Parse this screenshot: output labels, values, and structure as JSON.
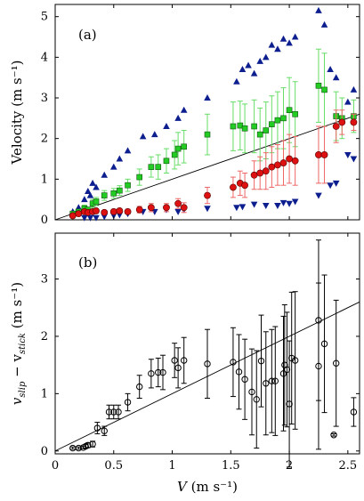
{
  "chart_data": [
    {
      "type": "scatter",
      "panel_label": "(a)",
      "ylabel": "Velocity  (m s⁻¹)",
      "xlim": [
        0,
        2.6
      ],
      "ylim": [
        0,
        5.3
      ],
      "xticks": [
        "0",
        "0.5",
        "1",
        "1.5",
        "2",
        "2.5"
      ],
      "xtick_values": [
        0,
        0.5,
        1,
        1.5,
        2,
        2.5
      ],
      "yticks": [
        "0",
        "1",
        "2",
        "3",
        "4",
        "5"
      ],
      "ytick_values": [
        0,
        1,
        2,
        3,
        4,
        5
      ],
      "reference_line": [
        [
          0,
          0
        ],
        [
          2.6,
          2.6
        ]
      ],
      "series": [
        {
          "marker": "triangle-up",
          "color": "#0d1f8f",
          "points": [
            [
              0.15,
              0.2
            ],
            [
              0.2,
              0.3
            ],
            [
              0.25,
              0.5
            ],
            [
              0.28,
              0.7
            ],
            [
              0.3,
              0.6
            ],
            [
              0.32,
              0.9
            ],
            [
              0.35,
              0.8
            ],
            [
              0.42,
              1.1
            ],
            [
              0.5,
              1.3
            ],
            [
              0.55,
              1.5
            ],
            [
              0.62,
              1.7
            ],
            [
              0.75,
              2.05
            ],
            [
              0.85,
              2.1
            ],
            [
              0.95,
              2.3
            ],
            [
              1.05,
              2.5
            ],
            [
              1.1,
              2.7
            ],
            [
              1.3,
              3.0
            ],
            [
              1.55,
              3.4
            ],
            [
              1.6,
              3.7
            ],
            [
              1.65,
              3.8
            ],
            [
              1.7,
              3.6
            ],
            [
              1.75,
              3.9
            ],
            [
              1.8,
              4.0
            ],
            [
              1.85,
              4.3
            ],
            [
              1.9,
              4.2
            ],
            [
              1.95,
              4.45
            ],
            [
              2.0,
              4.35
            ],
            [
              2.05,
              4.5
            ],
            [
              2.25,
              5.15
            ],
            [
              2.3,
              4.8
            ],
            [
              2.35,
              3.7
            ],
            [
              2.4,
              3.5
            ],
            [
              2.5,
              2.9
            ],
            [
              2.55,
              3.2
            ]
          ]
        },
        {
          "marker": "triangle-down",
          "color": "#0d1f8f",
          "points": [
            [
              0.25,
              0.05
            ],
            [
              0.3,
              0.05
            ],
            [
              0.35,
              0.05
            ],
            [
              0.42,
              0.08
            ],
            [
              0.5,
              0.1
            ],
            [
              0.55,
              0.12
            ],
            [
              0.62,
              0.15
            ],
            [
              0.75,
              0.2
            ],
            [
              0.85,
              0.2
            ],
            [
              0.95,
              0.25
            ],
            [
              1.05,
              0.2
            ],
            [
              1.1,
              0.25
            ],
            [
              1.3,
              0.28
            ],
            [
              1.55,
              0.3
            ],
            [
              1.6,
              0.32
            ],
            [
              1.7,
              0.38
            ],
            [
              1.8,
              0.35
            ],
            [
              1.9,
              0.35
            ],
            [
              1.95,
              0.42
            ],
            [
              2.0,
              0.4
            ],
            [
              2.05,
              0.45
            ],
            [
              2.25,
              0.6
            ],
            [
              2.35,
              0.85
            ],
            [
              2.4,
              0.9
            ],
            [
              2.5,
              1.6
            ],
            [
              2.55,
              1.5
            ]
          ]
        },
        {
          "marker": "square",
          "color": "#22cc22",
          "err_color": "#66dd66",
          "points": [
            [
              0.15,
              0.15
            ],
            [
              0.2,
              0.2
            ],
            [
              0.25,
              0.28
            ],
            [
              0.28,
              0.25
            ],
            [
              0.32,
              0.4
            ],
            [
              0.35,
              0.45
            ],
            [
              0.42,
              0.6
            ],
            [
              0.5,
              0.65
            ],
            [
              0.55,
              0.72
            ],
            [
              0.62,
              0.85
            ],
            [
              0.72,
              1.05
            ],
            [
              0.82,
              1.3
            ],
            [
              0.88,
              1.3
            ],
            [
              0.95,
              1.45
            ],
            [
              1.02,
              1.6
            ],
            [
              1.05,
              1.75
            ],
            [
              1.1,
              1.8
            ],
            [
              1.3,
              2.1
            ],
            [
              1.52,
              2.3
            ],
            [
              1.58,
              2.32
            ],
            [
              1.62,
              2.25
            ],
            [
              1.7,
              2.3
            ],
            [
              1.75,
              2.1
            ],
            [
              1.8,
              2.2
            ],
            [
              1.85,
              2.35
            ],
            [
              1.9,
              2.45
            ],
            [
              1.95,
              2.5
            ],
            [
              2.0,
              2.7
            ],
            [
              2.05,
              2.6
            ],
            [
              2.25,
              3.3
            ],
            [
              2.3,
              3.2
            ],
            [
              2.4,
              2.55
            ],
            [
              2.45,
              2.5
            ],
            [
              2.55,
              2.55
            ]
          ],
          "err": [
            0.05,
            0.05,
            0.08,
            0.05,
            0.1,
            0.1,
            0.12,
            0.12,
            0.12,
            0.15,
            0.2,
            0.25,
            0.3,
            0.3,
            0.35,
            0.4,
            0.4,
            0.5,
            0.6,
            0.6,
            0.6,
            0.65,
            0.65,
            0.7,
            0.7,
            0.7,
            0.75,
            0.8,
            0.8,
            0.9,
            0.9,
            0.6,
            0.5,
            0.4
          ]
        },
        {
          "marker": "circle",
          "color": "#dd1111",
          "err_color": "#ee6666",
          "points": [
            [
              0.15,
              0.1
            ],
            [
              0.2,
              0.15
            ],
            [
              0.25,
              0.2
            ],
            [
              0.28,
              0.18
            ],
            [
              0.32,
              0.2
            ],
            [
              0.35,
              0.22
            ],
            [
              0.42,
              0.18
            ],
            [
              0.5,
              0.2
            ],
            [
              0.55,
              0.22
            ],
            [
              0.62,
              0.2
            ],
            [
              0.72,
              0.25
            ],
            [
              0.82,
              0.3
            ],
            [
              0.95,
              0.3
            ],
            [
              1.05,
              0.4
            ],
            [
              1.1,
              0.3
            ],
            [
              1.3,
              0.6
            ],
            [
              1.52,
              0.8
            ],
            [
              1.58,
              0.9
            ],
            [
              1.62,
              0.85
            ],
            [
              1.7,
              1.1
            ],
            [
              1.75,
              1.15
            ],
            [
              1.8,
              1.2
            ],
            [
              1.85,
              1.3
            ],
            [
              1.9,
              1.35
            ],
            [
              1.95,
              1.4
            ],
            [
              2.0,
              1.5
            ],
            [
              2.05,
              1.45
            ],
            [
              2.25,
              1.6
            ],
            [
              2.3,
              1.6
            ],
            [
              2.4,
              2.3
            ],
            [
              2.45,
              2.4
            ],
            [
              2.55,
              2.4
            ]
          ],
          "err": [
            0.03,
            0.03,
            0.04,
            0.04,
            0.05,
            0.05,
            0.05,
            0.06,
            0.06,
            0.06,
            0.08,
            0.1,
            0.1,
            0.12,
            0.12,
            0.2,
            0.25,
            0.3,
            0.3,
            0.35,
            0.4,
            0.45,
            0.5,
            0.5,
            0.55,
            0.6,
            0.6,
            0.7,
            0.7,
            0.4,
            0.3,
            0.2
          ]
        }
      ]
    },
    {
      "type": "scatter",
      "panel_label": "(b)",
      "ylabel_main": "v",
      "ylabel_sub1": "slip",
      "ylabel_minus": " − v",
      "ylabel_sub2": "stick",
      "ylabel_units": "  (m s⁻¹)",
      "xlabel_var": "V",
      "xlabel_units": "  (m s⁻¹)",
      "xlim": [
        0,
        2.6
      ],
      "ylim": [
        -0.05,
        3.8
      ],
      "xticks": [
        "0",
        "0.5",
        "1",
        "1.5",
        "2",
        "2.5"
      ],
      "xtick_values": [
        0,
        0.5,
        1,
        1.5,
        2,
        2.5
      ],
      "yticks": [
        "0",
        "1",
        "2",
        "3"
      ],
      "ytick_values": [
        0,
        1,
        2,
        3
      ],
      "reference_line": [
        [
          0,
          0
        ],
        [
          2.6,
          2.6
        ]
      ],
      "series": [
        {
          "marker": "open-circle",
          "color": "#000000",
          "points": [
            [
              0.15,
              0.05
            ],
            [
              0.2,
              0.05
            ],
            [
              0.24,
              0.06
            ],
            [
              0.26,
              0.08
            ],
            [
              0.28,
              0.1
            ],
            [
              0.32,
              0.12
            ],
            [
              0.36,
              0.4
            ],
            [
              0.42,
              0.35
            ],
            [
              0.46,
              0.68
            ],
            [
              0.5,
              0.68
            ],
            [
              0.54,
              0.68
            ],
            [
              0.62,
              0.85
            ],
            [
              0.72,
              1.12
            ],
            [
              0.82,
              1.35
            ],
            [
              0.88,
              1.37
            ],
            [
              0.92,
              1.37
            ],
            [
              1.02,
              1.58
            ],
            [
              1.05,
              1.45
            ],
            [
              1.1,
              1.58
            ],
            [
              1.3,
              1.52
            ],
            [
              1.52,
              1.55
            ],
            [
              1.57,
              1.38
            ],
            [
              1.62,
              1.25
            ],
            [
              1.68,
              1.03
            ],
            [
              1.72,
              0.9
            ],
            [
              1.76,
              1.57
            ],
            [
              1.8,
              1.18
            ],
            [
              1.85,
              1.22
            ],
            [
              1.88,
              1.22
            ],
            [
              1.95,
              1.35
            ],
            [
              1.96,
              1.5
            ],
            [
              1.98,
              1.42
            ],
            [
              2.0,
              0.82
            ],
            [
              2.02,
              1.62
            ],
            [
              2.05,
              1.58
            ],
            [
              2.25,
              2.28
            ],
            [
              2.25,
              1.48
            ],
            [
              2.3,
              1.87
            ],
            [
              2.38,
              0.28
            ],
            [
              2.4,
              1.53
            ],
            [
              2.55,
              0.68
            ]
          ],
          "err": [
            0.02,
            0.02,
            0.02,
            0.03,
            0.04,
            0.05,
            0.1,
            0.08,
            0.12,
            0.12,
            0.12,
            0.15,
            0.2,
            0.25,
            0.25,
            0.3,
            0.3,
            0.35,
            0.4,
            0.6,
            0.6,
            0.65,
            0.7,
            0.75,
            0.85,
            0.8,
            0.9,
            0.9,
            0.95,
            1.0,
            1.05,
            1.0,
            1.1,
            1.15,
            1.2,
            1.4,
            1.45,
            1.2,
            0.02,
            1.1,
            0.25
          ]
        }
      ]
    }
  ]
}
